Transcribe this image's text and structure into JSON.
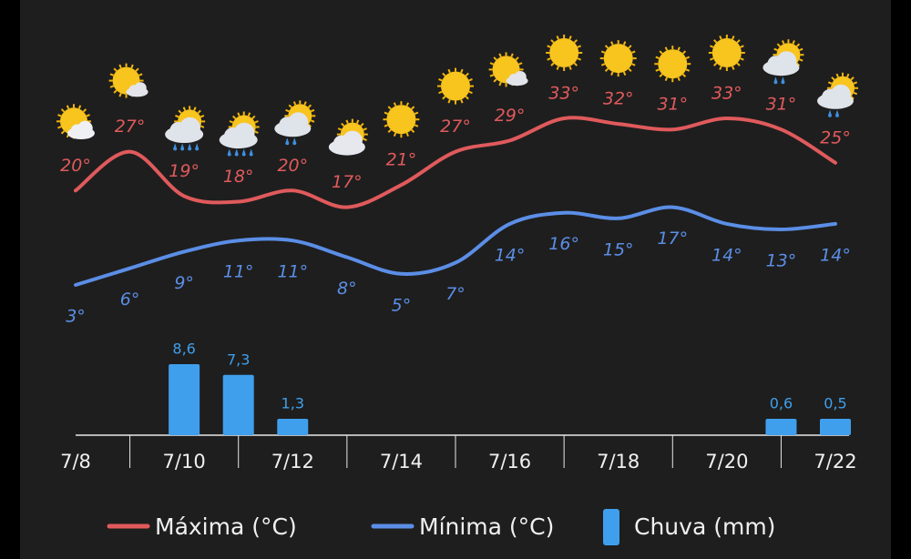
{
  "chart_data": {
    "type": "line",
    "categories": [
      "7/8",
      null,
      "7/10",
      null,
      "7/12",
      null,
      "7/14",
      null,
      "7/16",
      null,
      "7/18",
      null,
      "7/20",
      null,
      "7/22"
    ],
    "series": [
      {
        "name": "Máxima (°C)",
        "color": "#e05a5c",
        "values": [
          20,
          27,
          19,
          18,
          20,
          17,
          21,
          27,
          29,
          33,
          32,
          31,
          33,
          31,
          25
        ],
        "value_labels": [
          "20°",
          "27°",
          "19°",
          "18°",
          "20°",
          "17°",
          "21°",
          "27°",
          "29°",
          "33°",
          "32°",
          "31°",
          "33°",
          "31°",
          "25°"
        ]
      },
      {
        "name": "Mínima (°C)",
        "color": "#5b8ee6",
        "values": [
          3,
          6,
          9,
          11,
          11,
          8,
          5,
          7,
          14,
          16,
          15,
          17,
          14,
          13,
          14
        ],
        "value_labels": [
          "3°",
          "6°",
          "9°",
          "11°",
          "11°",
          "8°",
          "5°",
          "7°",
          "14°",
          "16°",
          "15°",
          "17°",
          "14°",
          "13°",
          "14°"
        ]
      },
      {
        "name": "Chuva (mm)",
        "type": "bar",
        "color": "#3f9fec",
        "values": [
          null,
          null,
          8.6,
          7.3,
          1.3,
          null,
          null,
          null,
          null,
          null,
          null,
          null,
          null,
          0.6,
          0.5
        ],
        "value_labels": [
          null,
          null,
          "8,6",
          "7,3",
          "1,3",
          null,
          null,
          null,
          null,
          null,
          null,
          null,
          null,
          "0,6",
          "0,5"
        ]
      }
    ]
  }
}
